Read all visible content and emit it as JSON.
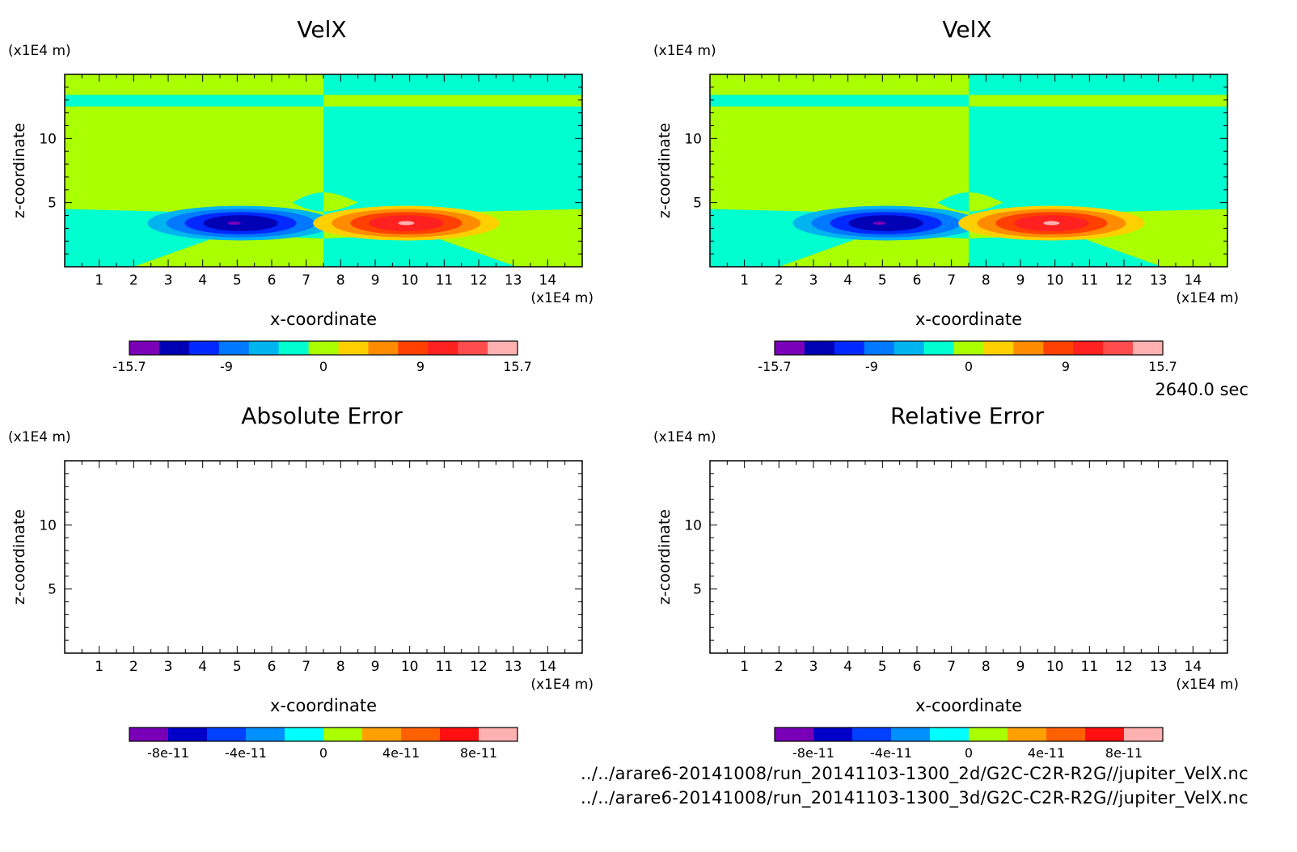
{
  "time_label": "2640.0 sec",
  "file_paths": [
    "../../arare6-20141008/run_20141103-1300_2d/G2C-C2R-R2G//jupiter_VelX.nc",
    "../../arare6-20141008/run_20141103-1300_3d/G2C-C2R-R2G//jupiter_VelX.nc"
  ],
  "chart_data": [
    {
      "type": "heatmap",
      "title": "VelX",
      "xlabel": "x-coordinate",
      "ylabel": "z-coordinate",
      "x_unit": "(x1E4 m)",
      "y_unit": "(x1E4 m)",
      "xlim": [
        0,
        15
      ],
      "ylim": [
        0,
        15
      ],
      "x_ticks": [
        1,
        2,
        3,
        4,
        5,
        6,
        7,
        8,
        9,
        10,
        11,
        12,
        13,
        14
      ],
      "y_ticks": [
        5,
        10
      ],
      "colorbar": {
        "ticks": [
          "-15.7",
          "-9",
          "0",
          "9",
          "15.7"
        ],
        "range": [
          -15.7,
          15.7
        ],
        "colors": [
          "#7a00b8",
          "#0000b4",
          "#0028ff",
          "#0078ff",
          "#00b4f0",
          "#00ffd0",
          "#aaff00",
          "#ffd000",
          "#ff8c00",
          "#ff4000",
          "#ff2020",
          "#ff4c4c",
          "#ffb0b0"
        ]
      },
      "features": [
        {
          "label": "negative jet",
          "x_center": 5.1,
          "z_center": 3.4,
          "min_value": -15.7
        },
        {
          "label": "positive jet",
          "x_center": 9.9,
          "z_center": 3.4,
          "max_value": 15.7
        }
      ]
    },
    {
      "type": "heatmap",
      "title": "VelX",
      "xlabel": "x-coordinate",
      "ylabel": "z-coordinate",
      "x_unit": "(x1E4 m)",
      "y_unit": "(x1E4 m)",
      "xlim": [
        0,
        15
      ],
      "ylim": [
        0,
        15
      ],
      "x_ticks": [
        1,
        2,
        3,
        4,
        5,
        6,
        7,
        8,
        9,
        10,
        11,
        12,
        13,
        14
      ],
      "y_ticks": [
        5,
        10
      ],
      "colorbar": {
        "ticks": [
          "-15.7",
          "-9",
          "0",
          "9",
          "15.7"
        ],
        "range": [
          -15.7,
          15.7
        ],
        "colors": [
          "#7a00b8",
          "#0000b4",
          "#0028ff",
          "#0078ff",
          "#00b4f0",
          "#00ffd0",
          "#aaff00",
          "#ffd000",
          "#ff8c00",
          "#ff4000",
          "#ff2020",
          "#ff4c4c",
          "#ffb0b0"
        ]
      },
      "features": [
        {
          "label": "negative jet",
          "x_center": 5.1,
          "z_center": 3.4,
          "min_value": -15.7
        },
        {
          "label": "positive jet",
          "x_center": 9.9,
          "z_center": 3.4,
          "max_value": 15.7
        }
      ]
    },
    {
      "type": "heatmap",
      "title": "Absolute Error",
      "xlabel": "x-coordinate",
      "ylabel": "z-coordinate",
      "x_unit": "(x1E4 m)",
      "y_unit": "(x1E4 m)",
      "xlim": [
        0,
        15
      ],
      "ylim": [
        0,
        15
      ],
      "x_ticks": [
        1,
        2,
        3,
        4,
        5,
        6,
        7,
        8,
        9,
        10,
        11,
        12,
        13,
        14
      ],
      "y_ticks": [
        5,
        10
      ],
      "empty": true,
      "colorbar": {
        "ticks": [
          "-8e-11",
          "-4e-11",
          "0",
          "4e-11",
          "8e-11"
        ],
        "range": [
          -1e-10,
          1e-10
        ],
        "colors": [
          "#7a00b8",
          "#0000c8",
          "#0040ff",
          "#0090ff",
          "#00ffff",
          "#aaff00",
          "#ffa000",
          "#ff6000",
          "#ff1010",
          "#ffb0b0"
        ]
      }
    },
    {
      "type": "heatmap",
      "title": "Relative Error",
      "xlabel": "x-coordinate",
      "ylabel": "z-coordinate",
      "x_unit": "(x1E4 m)",
      "y_unit": "(x1E4 m)",
      "xlim": [
        0,
        15
      ],
      "ylim": [
        0,
        15
      ],
      "x_ticks": [
        1,
        2,
        3,
        4,
        5,
        6,
        7,
        8,
        9,
        10,
        11,
        12,
        13,
        14
      ],
      "y_ticks": [
        5,
        10
      ],
      "empty": true,
      "colorbar": {
        "ticks": [
          "-8e-11",
          "-4e-11",
          "0",
          "4e-11",
          "8e-11"
        ],
        "range": [
          -1e-10,
          1e-10
        ],
        "colors": [
          "#7a00b8",
          "#0000c8",
          "#0040ff",
          "#0090ff",
          "#00ffff",
          "#aaff00",
          "#ffa000",
          "#ff6000",
          "#ff1010",
          "#ffb0b0"
        ]
      }
    }
  ]
}
